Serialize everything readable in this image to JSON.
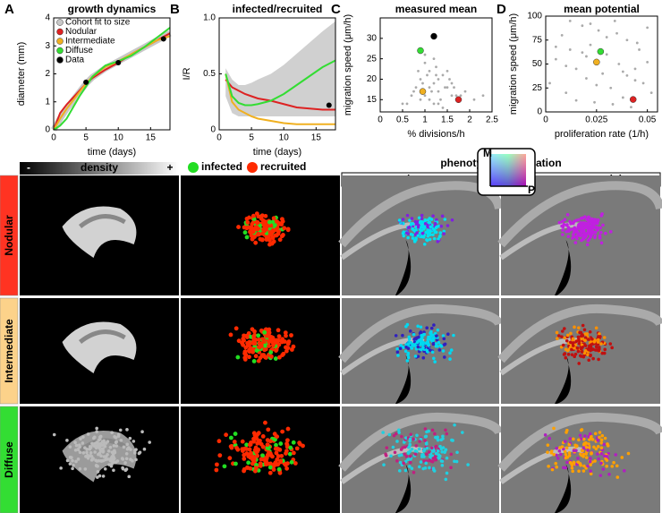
{
  "chart_data": [
    {
      "type": "line",
      "panel_label": "A",
      "title": "growth dynamics",
      "xlabel": "time (days)",
      "ylabel": "diameter (mm)",
      "x": [
        0,
        1,
        2,
        3,
        4,
        5,
        6,
        8,
        10,
        12,
        14,
        16,
        18
      ],
      "series": [
        {
          "name": "Cohort fit to size",
          "color": "#c8c8c8",
          "values": [
            0,
            0.4,
            0.75,
            1.05,
            1.35,
            1.65,
            1.88,
            2.2,
            2.45,
            2.7,
            2.95,
            3.2,
            3.45
          ]
        },
        {
          "name": "Nodular",
          "color": "#dd2222",
          "values": [
            0,
            0.6,
            0.9,
            1.15,
            1.4,
            1.65,
            1.85,
            2.15,
            2.4,
            2.7,
            2.95,
            3.2,
            3.45
          ]
        },
        {
          "name": "Intermediate",
          "color": "#f0b020",
          "values": [
            0,
            0.4,
            0.75,
            1.05,
            1.35,
            1.65,
            1.9,
            2.25,
            2.45,
            2.7,
            2.95,
            3.2,
            3.35
          ]
        },
        {
          "name": "Diffuse",
          "color": "#33dd33",
          "values": [
            0,
            0.15,
            0.4,
            0.8,
            1.2,
            1.55,
            1.9,
            2.3,
            2.45,
            2.65,
            2.95,
            3.3,
            3.65
          ]
        }
      ],
      "data_points": {
        "name": "Data",
        "color": "#000000",
        "x": [
          5,
          10,
          17
        ],
        "y": [
          1.7,
          2.4,
          3.25
        ]
      },
      "xlim": [
        0,
        18
      ],
      "xticks": [
        0,
        5,
        10,
        15
      ],
      "ylim": [
        0,
        4
      ],
      "yticks": [
        0,
        1,
        2,
        3,
        4
      ],
      "legend": "upper left"
    },
    {
      "type": "line",
      "panel_label": "B",
      "title": "infected/recruited",
      "xlabel": "time (days)",
      "ylabel": "I/R",
      "x": [
        1,
        2,
        3,
        4,
        5,
        6,
        8,
        10,
        12,
        14,
        16,
        18
      ],
      "band": {
        "color": "#d0d0d0",
        "lower": [
          0.3,
          0.15,
          0.12,
          0.12,
          0.12,
          0.12,
          0.12,
          0.12,
          0.12,
          0.12,
          0.12,
          0.12
        ],
        "upper": [
          0.55,
          0.45,
          0.4,
          0.4,
          0.42,
          0.45,
          0.5,
          0.58,
          0.68,
          0.78,
          0.88,
          0.97
        ]
      },
      "series": [
        {
          "name": "Nodular",
          "color": "#dd2222",
          "values": [
            0.45,
            0.38,
            0.35,
            0.32,
            0.3,
            0.28,
            0.26,
            0.23,
            0.2,
            0.19,
            0.18,
            0.18
          ]
        },
        {
          "name": "Intermediate",
          "color": "#f0b020",
          "values": [
            0.5,
            0.25,
            0.18,
            0.15,
            0.12,
            0.1,
            0.08,
            0.06,
            0.05,
            0.05,
            0.05,
            0.05
          ]
        },
        {
          "name": "Diffuse",
          "color": "#33dd33",
          "values": [
            0.5,
            0.3,
            0.24,
            0.22,
            0.22,
            0.23,
            0.26,
            0.32,
            0.4,
            0.48,
            0.56,
            0.62
          ]
        }
      ],
      "data_points": {
        "color": "#000000",
        "x": [
          17
        ],
        "y": [
          0.22
        ]
      },
      "xlim": [
        0,
        18
      ],
      "xticks": [
        0,
        5,
        10,
        15
      ],
      "ylim": [
        0,
        1
      ],
      "yticks": [
        0,
        0.5,
        {
          "value": 1,
          "label": "1.0"
        }
      ]
    },
    {
      "type": "scatter",
      "panel_label": "C",
      "title": "measured mean",
      "xlabel": "% divisions/h",
      "ylabel": "migration speed (μm/h)",
      "points": {
        "color": "#aaaaaa",
        "x": [
          0.8,
          0.9,
          1.0,
          1.1,
          1.2,
          1.3,
          1.4,
          1.5,
          1.6,
          1.0,
          1.1,
          1.2,
          1.3,
          0.7,
          0.95,
          1.05,
          1.15,
          1.25,
          1.35,
          1.45,
          1.55,
          1.7,
          1.9,
          2.1,
          0.6,
          0.85,
          1.0,
          1.2,
          1.4,
          1.6,
          0.9,
          1.1,
          1.3,
          1.5,
          1.8,
          0.5,
          2.3,
          0.75,
          1.25,
          1.65
        ],
        "y": [
          18,
          20,
          16,
          22,
          19,
          17,
          21,
          18,
          16,
          24,
          15,
          14,
          20,
          16,
          19,
          21,
          17,
          23,
          15,
          18,
          20,
          16,
          17,
          15,
          14,
          22,
          26,
          25,
          13,
          19,
          15,
          18,
          14,
          22,
          16,
          14,
          16,
          17,
          21,
          18
        ]
      },
      "highlights": [
        {
          "color": "#33dd33",
          "x": 0.9,
          "y": 27
        },
        {
          "color": "#f0b020",
          "x": 0.95,
          "y": 17
        },
        {
          "color": "#000000",
          "x": 1.2,
          "y": 30.5
        },
        {
          "color": "#dd2222",
          "x": 1.75,
          "y": 15
        }
      ],
      "xlim": [
        0,
        2.5
      ],
      "xticks": [
        0,
        0.5,
        1,
        1.5,
        2,
        2.5
      ],
      "ylim": [
        12,
        35
      ],
      "yticks": [
        15,
        20,
        25,
        30
      ]
    },
    {
      "type": "scatter",
      "panel_label": "D",
      "title": "mean potential",
      "xlabel": "proliferation rate (1/h)",
      "ylabel": "migration speed (μm/h)",
      "points": {
        "color": "#aaaaaa",
        "x": [
          0.002,
          0.005,
          0.008,
          0.01,
          0.012,
          0.015,
          0.018,
          0.02,
          0.022,
          0.024,
          0.026,
          0.028,
          0.03,
          0.032,
          0.034,
          0.036,
          0.038,
          0.04,
          0.042,
          0.044,
          0.046,
          0.048,
          0.05,
          0.052,
          0.005,
          0.012,
          0.02,
          0.03,
          0.04,
          0.05,
          0.015,
          0.025,
          0.035,
          0.045,
          0.01,
          0.022,
          0.033,
          0.044,
          0.018,
          0.038
        ],
        "y": [
          30,
          55,
          80,
          20,
          65,
          45,
          90,
          35,
          70,
          10,
          85,
          40,
          60,
          25,
          95,
          50,
          15,
          75,
          5,
          45,
          65,
          30,
          88,
          20,
          68,
          95,
          58,
          78,
          38,
          52,
          12,
          28,
          82,
          72,
          48,
          92,
          8,
          33,
          62,
          42
        ]
      },
      "highlights": [
        {
          "color": "#33dd33",
          "x": 0.027,
          "y": 63
        },
        {
          "color": "#f0b020",
          "x": 0.025,
          "y": 52
        },
        {
          "color": "#dd2222",
          "x": 0.043,
          "y": 13
        }
      ],
      "xlim": [
        0,
        0.055
      ],
      "xticks": [
        0,
        0.025,
        0.05
      ],
      "ylim": [
        0,
        100
      ],
      "yticks": [
        0,
        25,
        50,
        75,
        100
      ]
    }
  ],
  "image_grid": {
    "density_bar": {
      "minus": "-",
      "label": "density",
      "plus": "+"
    },
    "cell_legend": [
      {
        "name": "infected",
        "color": "#22dd22"
      },
      {
        "name": "recruited",
        "color": "#ff2a00"
      }
    ],
    "group_title": "phenotype combination",
    "columns": [
      "measured",
      "potential"
    ],
    "color_key": {
      "y_axis": "M",
      "x_axis": "P"
    },
    "rows": [
      {
        "name": "Nodular",
        "color": "#ff3322"
      },
      {
        "name": "Intermediate",
        "color": "#fcd28a"
      },
      {
        "name": "Diffuse",
        "color": "#33dd33"
      }
    ]
  }
}
